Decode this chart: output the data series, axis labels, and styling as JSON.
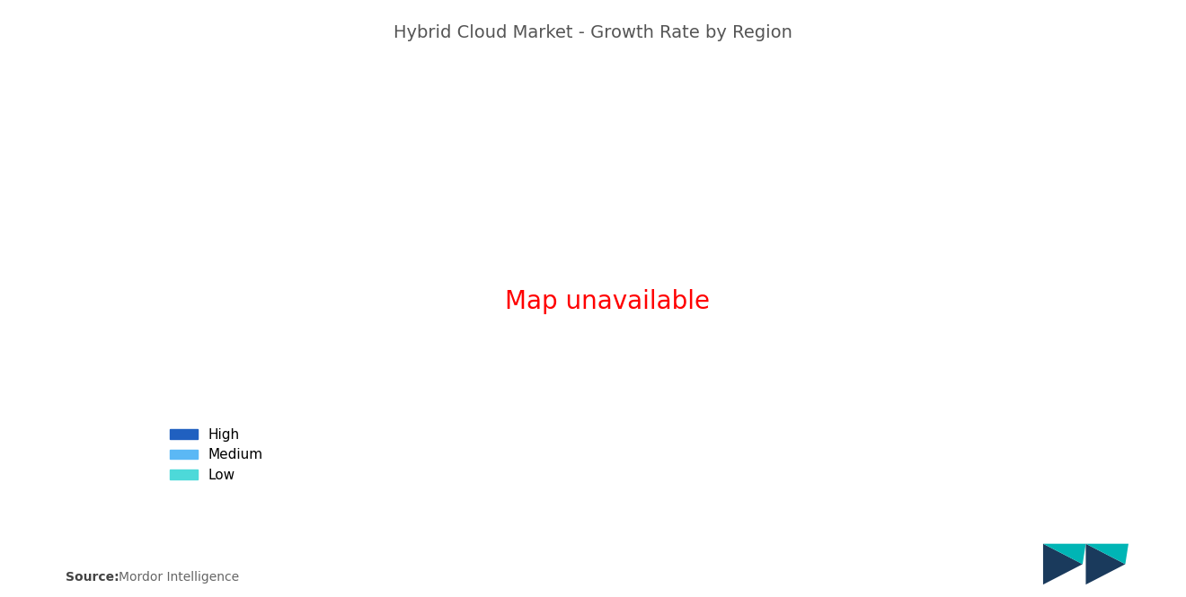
{
  "title": "Hybrid Cloud Market - Growth Rate by Region",
  "background_color": "#ffffff",
  "title_fontsize": 14,
  "title_color": "#555555",
  "legend_items": [
    {
      "label": "High",
      "color": "#2060C0"
    },
    {
      "label": "Medium",
      "color": "#5BB8F5"
    },
    {
      "label": "Low",
      "color": "#4DD9D9"
    }
  ],
  "missing_color": "#A8AAAD",
  "border_color": "#ffffff",
  "source_bold": "Source:",
  "source_normal": "  Mordor Intelligence",
  "logo_dark": "#1a3a5c",
  "logo_teal": "#00b5b5"
}
